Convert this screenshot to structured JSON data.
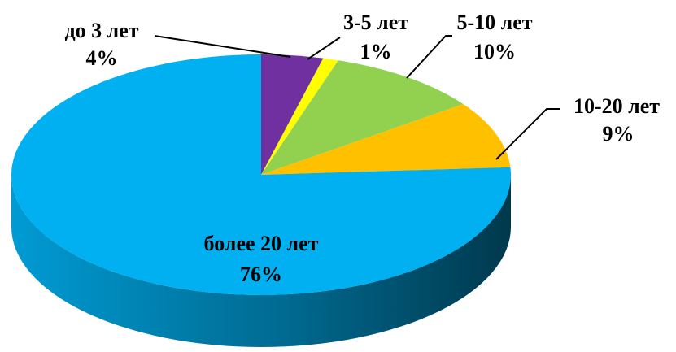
{
  "chart_data": {
    "type": "pie",
    "categories": [
      "до 3 лет",
      "3-5 лет",
      "5-10 лет",
      "10-20 лет",
      "более 20 лет"
    ],
    "values": [
      4,
      1,
      10,
      9,
      76
    ],
    "value_labels": [
      "4%",
      "1%",
      "10%",
      "9%",
      "76%"
    ],
    "colors": [
      "#7030a0",
      "#ffff00",
      "#92d050",
      "#ffc000",
      "#00b0f0"
    ]
  }
}
